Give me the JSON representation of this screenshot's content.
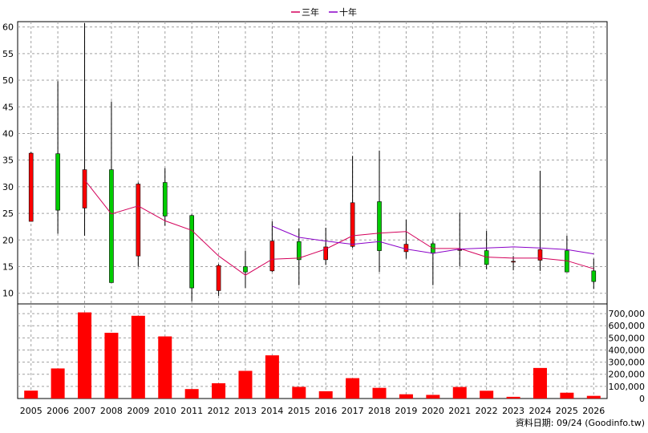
{
  "legend": {
    "ma3_label": "三年",
    "ma10_label": "十年"
  },
  "footer": "資料日期: 09/24  (Goodinfo.tw)",
  "colors": {
    "up": "#ff0000",
    "down": "#00cc00",
    "ma3": "#d4005a",
    "ma10": "#8a00c8",
    "volume": "#ff0000",
    "grid": "#a0a0a0",
    "wick": "#000000"
  },
  "chart_data": {
    "type": "candlestick+bar",
    "x": [
      "2005",
      "2006",
      "2007",
      "2008",
      "2009",
      "2010",
      "2011",
      "2012",
      "2013",
      "2014",
      "2015",
      "2016",
      "2017",
      "2018",
      "2019",
      "2020",
      "2021",
      "2022",
      "2023",
      "2024",
      "2025",
      "2026"
    ],
    "price_ylim": [
      8,
      61
    ],
    "price_ticks": [
      10,
      15,
      20,
      25,
      30,
      35,
      40,
      45,
      50,
      55,
      60
    ],
    "ohlc": [
      {
        "open": 23.5,
        "high": 36.5,
        "low": 23.5,
        "close": 36.3
      },
      {
        "open": 36.2,
        "high": 49.8,
        "low": 21.2,
        "close": 25.6
      },
      {
        "open": 26.0,
        "high": 60.7,
        "low": 20.8,
        "close": 33.2
      },
      {
        "open": 33.2,
        "high": 46.0,
        "low": 12.0,
        "close": 12.0
      },
      {
        "open": 17.0,
        "high": 30.8,
        "low": 15.0,
        "close": 30.5
      },
      {
        "open": 30.8,
        "high": 33.5,
        "low": 22.7,
        "close": 24.5
      },
      {
        "open": 24.6,
        "high": 24.8,
        "low": 8.5,
        "close": 11.0
      },
      {
        "open": 10.5,
        "high": 15.5,
        "low": 9.5,
        "close": 15.2
      },
      {
        "open": 15.0,
        "high": 18.0,
        "low": 11.0,
        "close": 14.0
      },
      {
        "open": 14.2,
        "high": 23.5,
        "low": 14.0,
        "close": 19.8
      },
      {
        "open": 19.7,
        "high": 22.2,
        "low": 11.5,
        "close": 16.3
      },
      {
        "open": 16.3,
        "high": 22.3,
        "low": 15.3,
        "close": 18.7
      },
      {
        "open": 18.8,
        "high": 35.8,
        "low": 18.5,
        "close": 27.0
      },
      {
        "open": 27.2,
        "high": 36.8,
        "low": 14.0,
        "close": 18.0
      },
      {
        "open": 17.8,
        "high": 23.8,
        "low": 16.5,
        "close": 19.2
      },
      {
        "open": 19.3,
        "high": 19.8,
        "low": 11.5,
        "close": 17.5
      },
      {
        "open": 18.2,
        "high": 25.2,
        "low": 15.0,
        "close": 18.2
      },
      {
        "open": 18.0,
        "high": 21.7,
        "low": 14.5,
        "close": 15.4
      },
      {
        "open": 16.0,
        "high": 17.0,
        "low": 14.3,
        "close": 16.0
      },
      {
        "open": 16.2,
        "high": 33.0,
        "low": 14.2,
        "close": 18.2
      },
      {
        "open": 18.0,
        "high": 20.8,
        "low": 14.0,
        "close": 14.0
      },
      {
        "open": 14.2,
        "high": 16.5,
        "low": 10.8,
        "close": 12.2
      }
    ],
    "series": [
      {
        "name": "三年",
        "values": [
          null,
          null,
          31.3,
          24.9,
          26.4,
          23.6,
          21.8,
          17.0,
          13.4,
          16.4,
          16.6,
          18.3,
          20.8,
          21.3,
          21.6,
          18.4,
          18.4,
          16.8,
          16.6,
          16.6,
          16.1,
          14.6
        ]
      },
      {
        "name": "十年",
        "values": [
          null,
          null,
          null,
          null,
          null,
          null,
          null,
          null,
          null,
          22.6,
          20.5,
          19.8,
          19.2,
          19.7,
          18.3,
          17.5,
          18.3,
          18.5,
          18.7,
          18.5,
          18.2,
          17.4
        ]
      }
    ],
    "volume_ylim": [
      0,
      780000
    ],
    "volume_ticks": [
      0,
      100000,
      200000,
      300000,
      400000,
      500000,
      600000,
      700000
    ],
    "volume_tick_labels": [
      "0",
      "100,000",
      "200,000",
      "300,000",
      "400,000",
      "500,000",
      "600,000",
      "700,000"
    ],
    "volume": [
      65000,
      248000,
      710000,
      542000,
      682000,
      512000,
      78000,
      126000,
      228000,
      356000,
      96000,
      60000,
      168000,
      88000,
      35000,
      30000,
      95000,
      64000,
      14000,
      252000,
      48000,
      22000
    ]
  }
}
